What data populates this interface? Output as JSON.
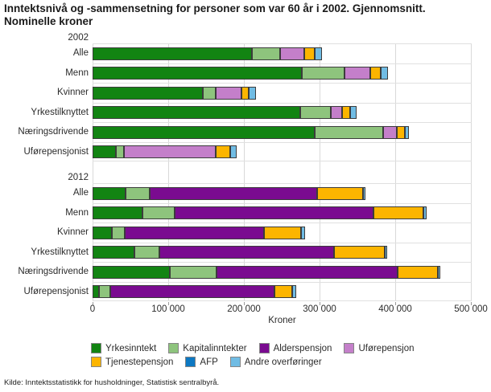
{
  "title": {
    "line1": "Inntektsnivå og -sammensetning for personer som var 60 år i 2002. Gjennomsnitt.",
    "line2": "Nominelle kroner"
  },
  "source": "Kilde: Inntektsstatistikk for husholdninger, Statistisk sentralbyrå.",
  "legend": {
    "rows": [
      [
        "Yrkesinntekt",
        "Kapitalinntekter",
        "Alderspensjon",
        "Uførepensjon"
      ],
      [
        "Tjenestepensjon",
        "AFP",
        "Andre overføringer"
      ]
    ]
  },
  "chart_data": {
    "type": "bar",
    "orientation": "horizontal",
    "stacked": true,
    "grid": "vertical",
    "legend_position": "bottom",
    "xlabel": "Kroner",
    "xlim": [
      0,
      500000
    ],
    "x_ticks": [
      "0",
      "100 000",
      "200 000",
      "300 000",
      "400 000",
      "500 000"
    ],
    "series": [
      {
        "name": "Yrkesinntekt",
        "color": "#128412"
      },
      {
        "name": "Kapitalinntekter",
        "color": "#8ec47d"
      },
      {
        "name": "Alderspensjon",
        "color": "#7a0b90"
      },
      {
        "name": "Uførepensjon",
        "color": "#c47fca"
      },
      {
        "name": "Tjenestepensjon",
        "color": "#fcb500"
      },
      {
        "name": "AFP",
        "color": "#0d78c2"
      },
      {
        "name": "Andre overføringer",
        "color": "#70bce4"
      }
    ],
    "groups": [
      {
        "label": "2002",
        "rows": [
          {
            "label": "Alle",
            "values": [
              211000,
              37000,
              0,
              32000,
              14000,
              0,
              9000
            ]
          },
          {
            "label": "Menn",
            "values": [
              277000,
              56000,
              0,
              34000,
              14000,
              0,
              9000
            ]
          },
          {
            "label": "Kvinner",
            "values": [
              146000,
              17000,
              0,
              34000,
              9000,
              0,
              10000
            ]
          },
          {
            "label": "Yrkestilknyttet",
            "values": [
              274000,
              41000,
              0,
              15000,
              10000,
              0,
              9000
            ]
          },
          {
            "label": "Næringsdrivende",
            "values": [
              294000,
              90000,
              0,
              18000,
              11000,
              0,
              5000
            ]
          },
          {
            "label": "Uførepensjonist",
            "values": [
              31000,
              10000,
              0,
              122000,
              19000,
              0,
              8000
            ]
          }
        ]
      },
      {
        "label": "2012",
        "rows": [
          {
            "label": "Alle",
            "values": [
              44000,
              31000,
              222000,
              0,
              60000,
              0,
              4000
            ]
          },
          {
            "label": "Menn",
            "values": [
              66000,
              43000,
              262000,
              0,
              66000,
              0,
              4000
            ]
          },
          {
            "label": "Kvinner",
            "values": [
              26000,
              17000,
              184000,
              0,
              49000,
              0,
              5000
            ]
          },
          {
            "label": "Yrkestilknyttet",
            "values": [
              55000,
              33000,
              231000,
              0,
              67000,
              0,
              3000
            ]
          },
          {
            "label": "Næringsdrivende",
            "values": [
              102000,
              62000,
              239000,
              0,
              53000,
              0,
              4000
            ]
          },
          {
            "label": "Uførepensjonist",
            "values": [
              8000,
              15000,
              217000,
              0,
              24000,
              0,
              5000
            ]
          }
        ]
      }
    ]
  }
}
